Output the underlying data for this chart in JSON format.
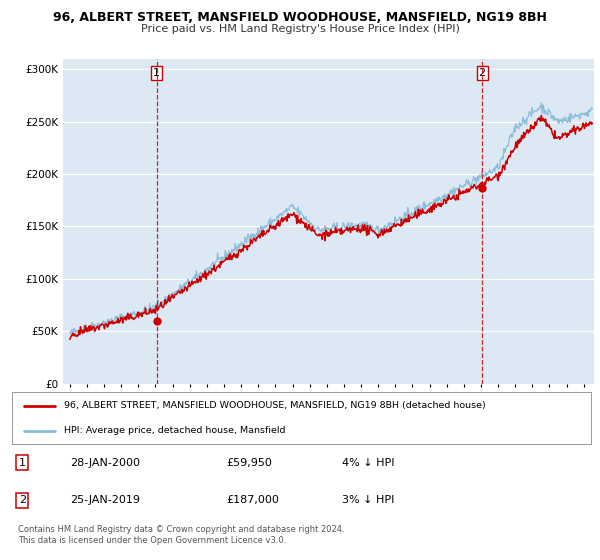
{
  "title": "96, ALBERT STREET, MANSFIELD WOODHOUSE, MANSFIELD, NG19 8BH",
  "subtitle": "Price paid vs. HM Land Registry's House Price Index (HPI)",
  "bg_color": "#dce9f5",
  "red_line_color": "#cc0000",
  "blue_line_color": "#8bbdd9",
  "marker_color": "#cc0000",
  "ylim": [
    0,
    310000
  ],
  "yticks": [
    0,
    50000,
    100000,
    150000,
    200000,
    250000,
    300000
  ],
  "ytick_labels": [
    "£0",
    "£50K",
    "£100K",
    "£150K",
    "£200K",
    "£250K",
    "£300K"
  ],
  "xmin": 1994.6,
  "xmax": 2025.6,
  "marker1_x": 2000.07,
  "marker1_y": 59950,
  "marker2_x": 2019.07,
  "marker2_y": 187000,
  "legend_red_label": "96, ALBERT STREET, MANSFIELD WOODHOUSE, MANSFIELD, NG19 8BH (detached house)",
  "legend_blue_label": "HPI: Average price, detached house, Mansfield",
  "note1_label": "1",
  "note1_date": "28-JAN-2000",
  "note1_price": "£59,950",
  "note1_hpi": "4% ↓ HPI",
  "note2_label": "2",
  "note2_date": "25-JAN-2019",
  "note2_price": "£187,000",
  "note2_hpi": "3% ↓ HPI",
  "footer": "Contains HM Land Registry data © Crown copyright and database right 2024.\nThis data is licensed under the Open Government Licence v3.0."
}
